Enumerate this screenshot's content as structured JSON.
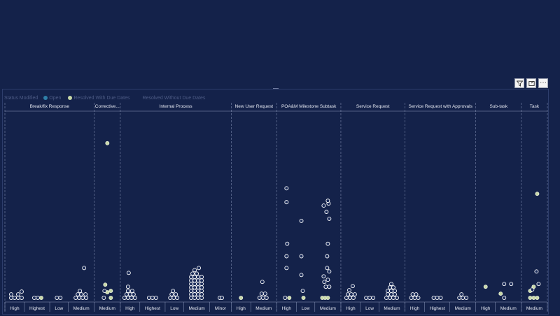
{
  "toolbar": {
    "filter_icon": "filter-icon",
    "focus_icon": "focus-mode-icon",
    "more_label": "⋯"
  },
  "legend": {
    "title": "Status Modified",
    "items": [
      {
        "label": "Open",
        "color": "#2f7fa8"
      },
      {
        "label": "Resolved With Due Dates",
        "color": "#c8d8a8"
      },
      {
        "label": "Resolved Without Due Dates",
        "color": "#14224a"
      }
    ]
  },
  "colors": {
    "open": "#ffffff",
    "open_fill": "#1b2c5a",
    "resolved": "#c8d8a8",
    "grid": "#8f9bbd",
    "text": "#e6e9f2"
  },
  "chart_data": {
    "type": "scatter",
    "y_scale": "relative",
    "groups": [
      {
        "name": "Break/fix Response",
        "categories": [
          "High",
          "Highest",
          "Low",
          "Medium"
        ]
      },
      {
        "name": "Corrective...",
        "categories": [
          "Medium"
        ]
      },
      {
        "name": "Internal Process",
        "categories": [
          "High",
          "Highest",
          "Low",
          "Medium",
          "Minor"
        ]
      },
      {
        "name": "New User Request",
        "categories": [
          "High",
          "Medium"
        ]
      },
      {
        "name": "POA&M Milestone Subtask",
        "categories": [
          "High",
          "Low",
          "Medium"
        ]
      },
      {
        "name": "Service Request",
        "categories": [
          "High",
          "Low",
          "Medium"
        ]
      },
      {
        "name": "Service Request with Approvals",
        "categories": [
          "High",
          "Highest",
          "Medium"
        ]
      },
      {
        "name": "Sub-task",
        "categories": [
          "High",
          "Medium"
        ]
      },
      {
        "name": "Task",
        "categories": [
          "Medium"
        ]
      }
    ],
    "points": [
      {
        "g": 0,
        "c": 0,
        "dx": -5,
        "y": 2,
        "s": "open"
      },
      {
        "g": 0,
        "c": 0,
        "dx": 0,
        "y": 2,
        "s": "open"
      },
      {
        "g": 0,
        "c": 0,
        "dx": 5,
        "y": 2,
        "s": "open"
      },
      {
        "g": 0,
        "c": 0,
        "dx": 10,
        "y": 2,
        "s": "open"
      },
      {
        "g": 0,
        "c": 0,
        "dx": -5,
        "y": 7,
        "s": "open"
      },
      {
        "g": 0,
        "c": 0,
        "dx": 5,
        "y": 7,
        "s": "open"
      },
      {
        "g": 0,
        "c": 0,
        "dx": 10,
        "y": 11,
        "s": "open"
      },
      {
        "g": 0,
        "c": 1,
        "dx": -4,
        "y": 2,
        "s": "open"
      },
      {
        "g": 0,
        "c": 1,
        "dx": 1,
        "y": 2,
        "s": "open"
      },
      {
        "g": 0,
        "c": 1,
        "dx": 6,
        "y": 2,
        "s": "resolved"
      },
      {
        "g": 0,
        "c": 2,
        "dx": -3,
        "y": 2,
        "s": "open"
      },
      {
        "g": 0,
        "c": 2,
        "dx": 2,
        "y": 2,
        "s": "open"
      },
      {
        "g": 0,
        "c": 3,
        "dx": -8,
        "y": 2,
        "s": "open"
      },
      {
        "g": 0,
        "c": 3,
        "dx": -3,
        "y": 2,
        "s": "open"
      },
      {
        "g": 0,
        "c": 3,
        "dx": 2,
        "y": 2,
        "s": "open"
      },
      {
        "g": 0,
        "c": 3,
        "dx": 7,
        "y": 2,
        "s": "open"
      },
      {
        "g": 0,
        "c": 3,
        "dx": -5,
        "y": 7,
        "s": "open"
      },
      {
        "g": 0,
        "c": 3,
        "dx": 0,
        "y": 7,
        "s": "open"
      },
      {
        "g": 0,
        "c": 3,
        "dx": 6,
        "y": 7,
        "s": "open"
      },
      {
        "g": 0,
        "c": 3,
        "dx": -2,
        "y": 12,
        "s": "open"
      },
      {
        "g": 0,
        "c": 3,
        "dx": 4,
        "y": 45,
        "s": "open"
      },
      {
        "g": 1,
        "c": 0,
        "dx": -5,
        "y": 2,
        "s": "open"
      },
      {
        "g": 1,
        "c": 0,
        "dx": 5,
        "y": 2,
        "s": "resolved"
      },
      {
        "g": 1,
        "c": 0,
        "dx": 0,
        "y": 10,
        "s": "resolved"
      },
      {
        "g": 1,
        "c": 0,
        "dx": -4,
        "y": 12,
        "s": "open"
      },
      {
        "g": 1,
        "c": 0,
        "dx": 5,
        "y": 12,
        "s": "resolved"
      },
      {
        "g": 1,
        "c": 0,
        "dx": -3,
        "y": 21,
        "s": "resolved"
      },
      {
        "g": 1,
        "c": 0,
        "dx": 0,
        "y": 225,
        "s": "resolved"
      },
      {
        "g": 2,
        "c": 0,
        "dx": -8,
        "y": 2,
        "s": "open"
      },
      {
        "g": 2,
        "c": 0,
        "dx": -3,
        "y": 2,
        "s": "open"
      },
      {
        "g": 2,
        "c": 0,
        "dx": 2,
        "y": 2,
        "s": "open"
      },
      {
        "g": 2,
        "c": 0,
        "dx": 7,
        "y": 2,
        "s": "open"
      },
      {
        "g": 2,
        "c": 0,
        "dx": -5,
        "y": 7,
        "s": "open"
      },
      {
        "g": 2,
        "c": 0,
        "dx": 0,
        "y": 7,
        "s": "open"
      },
      {
        "g": 2,
        "c": 0,
        "dx": 5,
        "y": 7,
        "s": "open"
      },
      {
        "g": 2,
        "c": 0,
        "dx": -3,
        "y": 12,
        "s": "open"
      },
      {
        "g": 2,
        "c": 0,
        "dx": 3,
        "y": 12,
        "s": "open"
      },
      {
        "g": 2,
        "c": 0,
        "dx": -3,
        "y": 18,
        "s": "open"
      },
      {
        "g": 2,
        "c": 0,
        "dx": -2,
        "y": 38,
        "s": "open"
      },
      {
        "g": 2,
        "c": 1,
        "dx": -5,
        "y": 2,
        "s": "open"
      },
      {
        "g": 2,
        "c": 1,
        "dx": 0,
        "y": 2,
        "s": "open"
      },
      {
        "g": 2,
        "c": 1,
        "dx": 5,
        "y": 2,
        "s": "open"
      },
      {
        "g": 2,
        "c": 2,
        "dx": -6,
        "y": 2,
        "s": "open"
      },
      {
        "g": 2,
        "c": 2,
        "dx": -1,
        "y": 2,
        "s": "open"
      },
      {
        "g": 2,
        "c": 2,
        "dx": 4,
        "y": 2,
        "s": "open"
      },
      {
        "g": 2,
        "c": 2,
        "dx": -4,
        "y": 7,
        "s": "open"
      },
      {
        "g": 2,
        "c": 2,
        "dx": 2,
        "y": 7,
        "s": "open"
      },
      {
        "g": 2,
        "c": 2,
        "dx": -2,
        "y": 12,
        "s": "open"
      },
      {
        "g": 2,
        "c": 3,
        "dx": -8,
        "y": 2,
        "s": "open"
      },
      {
        "g": 2,
        "c": 3,
        "dx": -3,
        "y": 2,
        "s": "open"
      },
      {
        "g": 2,
        "c": 3,
        "dx": 2,
        "y": 2,
        "s": "open"
      },
      {
        "g": 2,
        "c": 3,
        "dx": 7,
        "y": 2,
        "s": "open"
      },
      {
        "g": 2,
        "c": 3,
        "dx": -8,
        "y": 7,
        "s": "open"
      },
      {
        "g": 2,
        "c": 3,
        "dx": -3,
        "y": 7,
        "s": "open"
      },
      {
        "g": 2,
        "c": 3,
        "dx": 2,
        "y": 7,
        "s": "open"
      },
      {
        "g": 2,
        "c": 3,
        "dx": 7,
        "y": 7,
        "s": "open"
      },
      {
        "g": 2,
        "c": 3,
        "dx": -8,
        "y": 12,
        "s": "open"
      },
      {
        "g": 2,
        "c": 3,
        "dx": -3,
        "y": 12,
        "s": "open"
      },
      {
        "g": 2,
        "c": 3,
        "dx": 2,
        "y": 12,
        "s": "open"
      },
      {
        "g": 2,
        "c": 3,
        "dx": 7,
        "y": 12,
        "s": "open"
      },
      {
        "g": 2,
        "c": 3,
        "dx": -8,
        "y": 17,
        "s": "open"
      },
      {
        "g": 2,
        "c": 3,
        "dx": -3,
        "y": 17,
        "s": "open"
      },
      {
        "g": 2,
        "c": 3,
        "dx": 2,
        "y": 17,
        "s": "open"
      },
      {
        "g": 2,
        "c": 3,
        "dx": 7,
        "y": 17,
        "s": "open"
      },
      {
        "g": 2,
        "c": 3,
        "dx": -8,
        "y": 22,
        "s": "open"
      },
      {
        "g": 2,
        "c": 3,
        "dx": -3,
        "y": 22,
        "s": "open"
      },
      {
        "g": 2,
        "c": 3,
        "dx": 2,
        "y": 22,
        "s": "open"
      },
      {
        "g": 2,
        "c": 3,
        "dx": 7,
        "y": 22,
        "s": "open"
      },
      {
        "g": 2,
        "c": 3,
        "dx": -8,
        "y": 27,
        "s": "open"
      },
      {
        "g": 2,
        "c": 3,
        "dx": -3,
        "y": 27,
        "s": "open"
      },
      {
        "g": 2,
        "c": 3,
        "dx": 2,
        "y": 27,
        "s": "open"
      },
      {
        "g": 2,
        "c": 3,
        "dx": 7,
        "y": 27,
        "s": "open"
      },
      {
        "g": 2,
        "c": 3,
        "dx": -8,
        "y": 32,
        "s": "open"
      },
      {
        "g": 2,
        "c": 3,
        "dx": -3,
        "y": 32,
        "s": "open"
      },
      {
        "g": 2,
        "c": 3,
        "dx": 2,
        "y": 32,
        "s": "open"
      },
      {
        "g": 2,
        "c": 3,
        "dx": 7,
        "y": 32,
        "s": "open"
      },
      {
        "g": 2,
        "c": 3,
        "dx": -6,
        "y": 37,
        "s": "open"
      },
      {
        "g": 2,
        "c": 3,
        "dx": 0,
        "y": 37,
        "s": "open"
      },
      {
        "g": 2,
        "c": 3,
        "dx": -3,
        "y": 42,
        "s": "open"
      },
      {
        "g": 2,
        "c": 3,
        "dx": 3,
        "y": 45,
        "s": "open"
      },
      {
        "g": 2,
        "c": 4,
        "dx": -1,
        "y": 2,
        "s": "open"
      },
      {
        "g": 2,
        "c": 4,
        "dx": 2,
        "y": 2,
        "s": "open"
      },
      {
        "g": 3,
        "c": 0,
        "dx": 0,
        "y": 2,
        "s": "resolved"
      },
      {
        "g": 3,
        "c": 1,
        "dx": -6,
        "y": 2,
        "s": "open"
      },
      {
        "g": 3,
        "c": 1,
        "dx": -1,
        "y": 2,
        "s": "open"
      },
      {
        "g": 3,
        "c": 1,
        "dx": 4,
        "y": 2,
        "s": "open"
      },
      {
        "g": 3,
        "c": 1,
        "dx": -3,
        "y": 8,
        "s": "open"
      },
      {
        "g": 3,
        "c": 1,
        "dx": 2,
        "y": 8,
        "s": "open"
      },
      {
        "g": 3,
        "c": 1,
        "dx": -2,
        "y": 25,
        "s": "open"
      },
      {
        "g": 4,
        "c": 0,
        "dx": -2,
        "y": 2,
        "s": "open"
      },
      {
        "g": 4,
        "c": 0,
        "dx": 4,
        "y": 2,
        "s": "resolved"
      },
      {
        "g": 4,
        "c": 0,
        "dx": 0,
        "y": 45,
        "s": "open"
      },
      {
        "g": 4,
        "c": 0,
        "dx": 0,
        "y": 62,
        "s": "open"
      },
      {
        "g": 4,
        "c": 0,
        "dx": 1,
        "y": 80,
        "s": "open"
      },
      {
        "g": 4,
        "c": 0,
        "dx": 0,
        "y": 140,
        "s": "open"
      },
      {
        "g": 4,
        "c": 0,
        "dx": 0,
        "y": 160,
        "s": "open"
      },
      {
        "g": 4,
        "c": 1,
        "dx": -3,
        "y": 2,
        "s": "resolved"
      },
      {
        "g": 4,
        "c": 1,
        "dx": -4,
        "y": 12,
        "s": "open"
      },
      {
        "g": 4,
        "c": 1,
        "dx": -6,
        "y": 35,
        "s": "open"
      },
      {
        "g": 4,
        "c": 1,
        "dx": -6,
        "y": 62,
        "s": "open"
      },
      {
        "g": 4,
        "c": 1,
        "dx": -6,
        "y": 113,
        "s": "open"
      },
      {
        "g": 4,
        "c": 2,
        "dx": -8,
        "y": 2,
        "s": "resolved"
      },
      {
        "g": 4,
        "c": 2,
        "dx": -4,
        "y": 2,
        "s": "resolved"
      },
      {
        "g": 4,
        "c": 2,
        "dx": 0,
        "y": 2,
        "s": "resolved"
      },
      {
        "g": 4,
        "c": 2,
        "dx": -3,
        "y": 18,
        "s": "open"
      },
      {
        "g": 4,
        "c": 2,
        "dx": 2,
        "y": 18,
        "s": "open"
      },
      {
        "g": 4,
        "c": 2,
        "dx": -5,
        "y": 25,
        "s": "open"
      },
      {
        "g": 4,
        "c": 2,
        "dx": 0,
        "y": 28,
        "s": "open"
      },
      {
        "g": 4,
        "c": 2,
        "dx": -6,
        "y": 33,
        "s": "open"
      },
      {
        "g": 4,
        "c": 2,
        "dx": 2,
        "y": 40,
        "s": "open"
      },
      {
        "g": 4,
        "c": 2,
        "dx": -1,
        "y": 45,
        "s": "open"
      },
      {
        "g": 4,
        "c": 2,
        "dx": -1,
        "y": 62,
        "s": "open"
      },
      {
        "g": 4,
        "c": 2,
        "dx": 0,
        "y": 80,
        "s": "open"
      },
      {
        "g": 4,
        "c": 2,
        "dx": 2,
        "y": 116,
        "s": "open"
      },
      {
        "g": 4,
        "c": 2,
        "dx": -2,
        "y": 126,
        "s": "open"
      },
      {
        "g": 4,
        "c": 2,
        "dx": 1,
        "y": 138,
        "s": "open"
      },
      {
        "g": 4,
        "c": 2,
        "dx": -6,
        "y": 135,
        "s": "open"
      },
      {
        "g": 4,
        "c": 2,
        "dx": 0,
        "y": 142,
        "s": "open"
      },
      {
        "g": 5,
        "c": 0,
        "dx": -6,
        "y": 2,
        "s": "open"
      },
      {
        "g": 5,
        "c": 0,
        "dx": -1,
        "y": 2,
        "s": "open"
      },
      {
        "g": 5,
        "c": 0,
        "dx": 4,
        "y": 2,
        "s": "open"
      },
      {
        "g": 5,
        "c": 0,
        "dx": -4,
        "y": 7,
        "s": "open"
      },
      {
        "g": 5,
        "c": 0,
        "dx": 1,
        "y": 7,
        "s": "open"
      },
      {
        "g": 5,
        "c": 0,
        "dx": 6,
        "y": 7,
        "s": "open"
      },
      {
        "g": 5,
        "c": 0,
        "dx": -2,
        "y": 13,
        "s": "open"
      },
      {
        "g": 5,
        "c": 0,
        "dx": 3,
        "y": 19,
        "s": "open"
      },
      {
        "g": 5,
        "c": 1,
        "dx": -5,
        "y": 2,
        "s": "open"
      },
      {
        "g": 5,
        "c": 1,
        "dx": 0,
        "y": 2,
        "s": "open"
      },
      {
        "g": 5,
        "c": 1,
        "dx": 5,
        "y": 2,
        "s": "open"
      },
      {
        "g": 5,
        "c": 2,
        "dx": -8,
        "y": 2,
        "s": "open"
      },
      {
        "g": 5,
        "c": 2,
        "dx": -3,
        "y": 2,
        "s": "open"
      },
      {
        "g": 5,
        "c": 2,
        "dx": 2,
        "y": 2,
        "s": "open"
      },
      {
        "g": 5,
        "c": 2,
        "dx": 7,
        "y": 2,
        "s": "open"
      },
      {
        "g": 5,
        "c": 2,
        "dx": -6,
        "y": 7,
        "s": "open"
      },
      {
        "g": 5,
        "c": 2,
        "dx": -1,
        "y": 7,
        "s": "open"
      },
      {
        "g": 5,
        "c": 2,
        "dx": 4,
        "y": 7,
        "s": "open"
      },
      {
        "g": 5,
        "c": 2,
        "dx": -6,
        "y": 12,
        "s": "open"
      },
      {
        "g": 5,
        "c": 2,
        "dx": -1,
        "y": 12,
        "s": "open"
      },
      {
        "g": 5,
        "c": 2,
        "dx": 4,
        "y": 12,
        "s": "open"
      },
      {
        "g": 5,
        "c": 2,
        "dx": -3,
        "y": 17,
        "s": "open"
      },
      {
        "g": 5,
        "c": 2,
        "dx": 2,
        "y": 17,
        "s": "open"
      },
      {
        "g": 5,
        "c": 2,
        "dx": -1,
        "y": 22,
        "s": "open"
      },
      {
        "g": 6,
        "c": 0,
        "dx": -5,
        "y": 2,
        "s": "open"
      },
      {
        "g": 6,
        "c": 0,
        "dx": 0,
        "y": 2,
        "s": "open"
      },
      {
        "g": 6,
        "c": 0,
        "dx": 5,
        "y": 2,
        "s": "open"
      },
      {
        "g": 6,
        "c": 0,
        "dx": -3,
        "y": 7,
        "s": "open"
      },
      {
        "g": 6,
        "c": 0,
        "dx": 2,
        "y": 7,
        "s": "open"
      },
      {
        "g": 6,
        "c": 1,
        "dx": -5,
        "y": 2,
        "s": "open"
      },
      {
        "g": 6,
        "c": 1,
        "dx": 0,
        "y": 2,
        "s": "open"
      },
      {
        "g": 6,
        "c": 1,
        "dx": 5,
        "y": 2,
        "s": "open"
      },
      {
        "g": 6,
        "c": 2,
        "dx": -5,
        "y": 2,
        "s": "open"
      },
      {
        "g": 6,
        "c": 2,
        "dx": 0,
        "y": 2,
        "s": "open"
      },
      {
        "g": 6,
        "c": 2,
        "dx": 5,
        "y": 2,
        "s": "open"
      },
      {
        "g": 6,
        "c": 2,
        "dx": -2,
        "y": 7,
        "s": "open"
      },
      {
        "g": 7,
        "c": 0,
        "dx": 0,
        "y": 18,
        "s": "resolved"
      },
      {
        "g": 7,
        "c": 1,
        "dx": -6,
        "y": 2,
        "s": "open"
      },
      {
        "g": 7,
        "c": 1,
        "dx": -11,
        "y": 8,
        "s": "resolved"
      },
      {
        "g": 7,
        "c": 1,
        "dx": -6,
        "y": 22,
        "s": "open"
      },
      {
        "g": 7,
        "c": 1,
        "dx": 4,
        "y": 22,
        "s": "open"
      },
      {
        "g": 8,
        "c": 0,
        "dx": -6,
        "y": 2,
        "s": "resolved"
      },
      {
        "g": 8,
        "c": 0,
        "dx": -1,
        "y": 2,
        "s": "resolved"
      },
      {
        "g": 8,
        "c": 0,
        "dx": 4,
        "y": 2,
        "s": "resolved"
      },
      {
        "g": 8,
        "c": 0,
        "dx": -6,
        "y": 12,
        "s": "resolved"
      },
      {
        "g": 8,
        "c": 0,
        "dx": -3,
        "y": 14,
        "s": "open"
      },
      {
        "g": 8,
        "c": 0,
        "dx": -1,
        "y": 18,
        "s": "resolved"
      },
      {
        "g": 8,
        "c": 0,
        "dx": 6,
        "y": 22,
        "s": "open"
      },
      {
        "g": 8,
        "c": 0,
        "dx": 3,
        "y": 40,
        "s": "open"
      },
      {
        "g": 8,
        "c": 0,
        "dx": 4,
        "y": 152,
        "s": "resolved"
      }
    ]
  }
}
